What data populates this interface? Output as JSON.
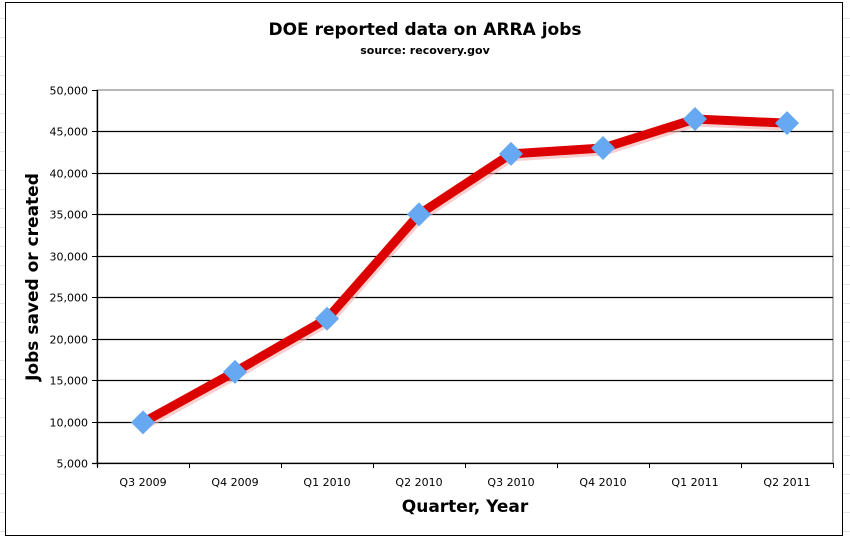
{
  "chart_data": {
    "type": "line",
    "title": "DOE reported data on ARRA jobs",
    "subtitle": "source: recovery.gov",
    "xlabel": "Quarter, Year",
    "ylabel": "Jobs saved or created",
    "categories": [
      "Q3 2009",
      "Q4 2009",
      "Q1 2010",
      "Q2 2010",
      "Q3 2010",
      "Q4 2010",
      "Q1 2011",
      "Q2 2011"
    ],
    "series": [
      {
        "name": "Jobs saved or created",
        "values": [
          9900,
          16000,
          22400,
          35000,
          42300,
          43000,
          46500,
          46000
        ],
        "line_color": "#dd0000",
        "marker_color": "#66a8f2",
        "marker": "diamond"
      }
    ],
    "ylim": [
      5000,
      50000
    ],
    "yticks": [
      5000,
      10000,
      15000,
      20000,
      25000,
      30000,
      35000,
      40000,
      45000,
      50000
    ],
    "ytick_labels": [
      "5,000",
      "10,000",
      "15,000",
      "20,000",
      "25,000",
      "30,000",
      "35,000",
      "40,000",
      "45,000",
      "50,000"
    ],
    "grid": "horizontal",
    "legend": "none"
  }
}
